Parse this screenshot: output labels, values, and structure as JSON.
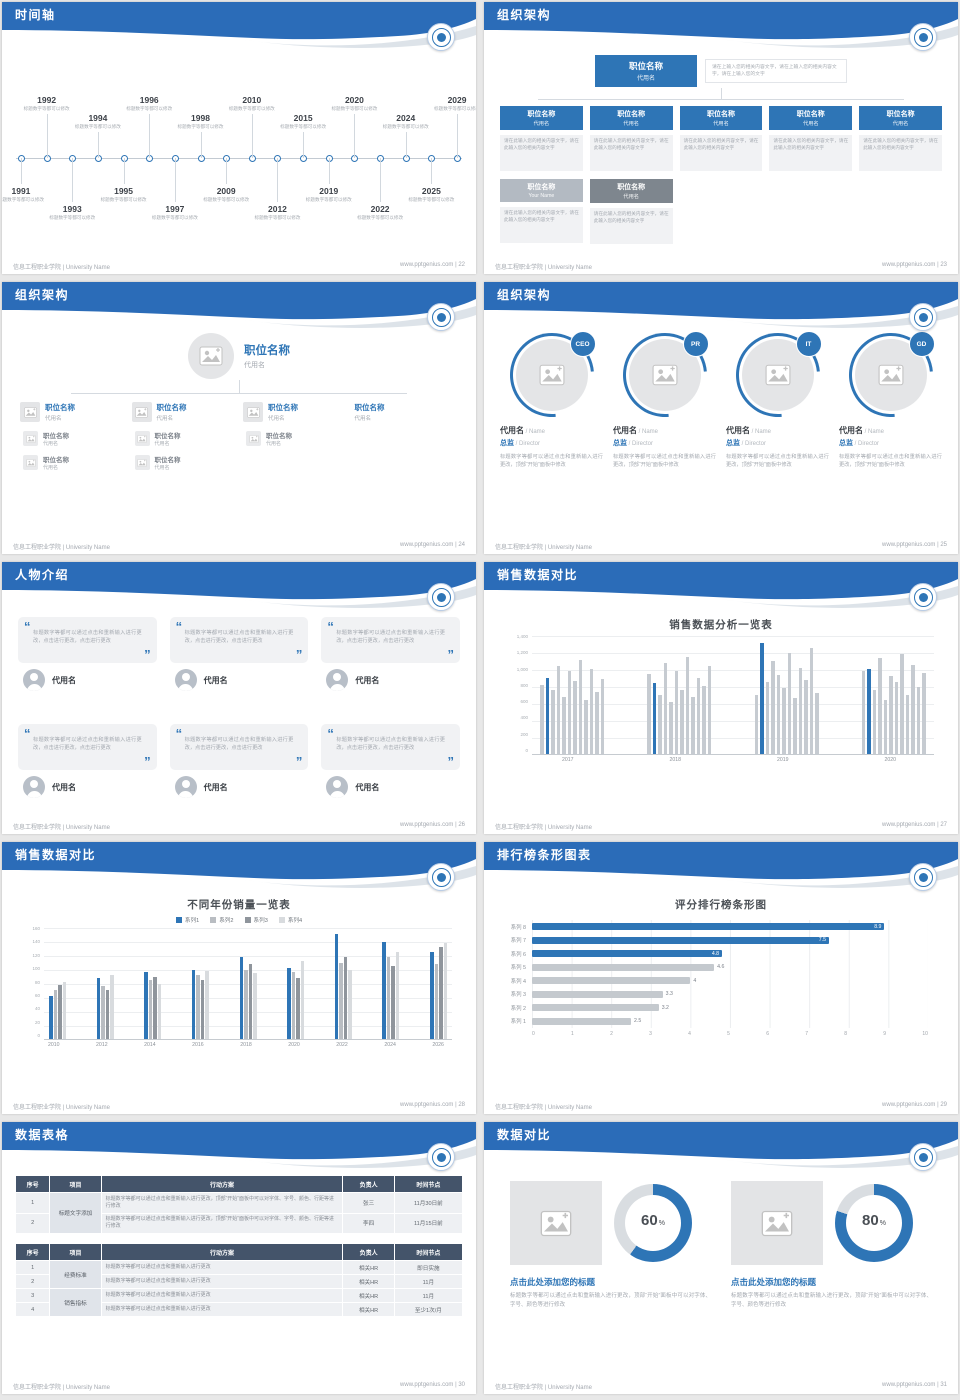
{
  "accent": "#2e75b6",
  "header_blue": "#2b6cb8",
  "footer": {
    "school": "信息工程职业学院 | University Name",
    "site": "www.pptgenius.com",
    "sep": " | "
  },
  "slides": [
    {
      "title": "时间轴",
      "page": "22"
    },
    {
      "title": "组织架构",
      "page": "23"
    },
    {
      "title": "组织架构",
      "page": "24"
    },
    {
      "title": "组织架构",
      "page": "25"
    },
    {
      "title": "人物介绍",
      "page": "26"
    },
    {
      "title": "销售数据对比",
      "page": "27"
    },
    {
      "title": "销售数据对比",
      "page": "28"
    },
    {
      "title": "排行榜条形图表",
      "page": "29"
    },
    {
      "title": "数据表格",
      "page": "30"
    },
    {
      "title": "数据对比",
      "page": "31"
    }
  ],
  "timeline": {
    "caption": "标题数字等都可以修改",
    "items": [
      {
        "year": "1991",
        "side": "below"
      },
      {
        "year": "1992",
        "side": "above"
      },
      {
        "year": "1993",
        "side": "below"
      },
      {
        "year": "1994",
        "side": "above"
      },
      {
        "year": "1995",
        "side": "below"
      },
      {
        "year": "1996",
        "side": "above"
      },
      {
        "year": "1997",
        "side": "below"
      },
      {
        "year": "1998",
        "side": "above"
      },
      {
        "year": "2009",
        "side": "below"
      },
      {
        "year": "2010",
        "side": "above"
      },
      {
        "year": "2012",
        "side": "below"
      },
      {
        "year": "2015",
        "side": "above"
      },
      {
        "year": "2019",
        "side": "below"
      },
      {
        "year": "2020",
        "side": "above"
      },
      {
        "year": "2022",
        "side": "below"
      },
      {
        "year": "2024",
        "side": "above"
      },
      {
        "year": "2025",
        "side": "below"
      },
      {
        "year": "2029",
        "side": "above"
      }
    ]
  },
  "org_boxes": {
    "root": {
      "title": "职位名称",
      "name": "代用名"
    },
    "root_note": "请在上输入您的相关内容文字，请在上输入您的相关内容文字，请在上输入您的文字",
    "note": "请在此输入您的相关内容文字，请在此输入您的相关内容文字",
    "nodes": [
      {
        "title": "职位名称",
        "name": "代用名"
      },
      {
        "title": "职位名称",
        "name": "代用名"
      },
      {
        "title": "职位名称",
        "name": "代用名"
      },
      {
        "title": "职位名称",
        "name": "代用名"
      },
      {
        "title": "职位名称",
        "name": "代用名"
      }
    ],
    "extra": [
      {
        "title": "职位名称",
        "name": "Your Name",
        "tone": "light"
      },
      {
        "title": "职位名称",
        "name": "代用名",
        "tone": "dark"
      }
    ]
  },
  "org_tree": {
    "root": {
      "title": "职位名称",
      "name": "代用名"
    },
    "children": [
      {
        "title": "职位名称",
        "name": "代用名",
        "icon": true,
        "subs": [
          {
            "title": "职位名称",
            "name": "代用名"
          },
          {
            "title": "职位名称",
            "name": "代用名"
          }
        ]
      },
      {
        "title": "职位名称",
        "name": "代用名",
        "icon": true,
        "subs": [
          {
            "title": "职位名称",
            "name": "代用名"
          },
          {
            "title": "职位名称",
            "name": "代用名"
          }
        ]
      },
      {
        "title": "职位名称",
        "name": "代用名",
        "icon": true,
        "subs": [
          {
            "title": "职位名称",
            "name": "代用名"
          }
        ]
      },
      {
        "title": "职位名称",
        "name": "代用名",
        "icon": false,
        "subs": []
      }
    ]
  },
  "profiles": {
    "badges": [
      "CEO",
      "PR",
      "IT",
      "GD"
    ],
    "name": "代用名",
    "name_suffix": " / Name",
    "role": "总监",
    "role_suffix": " / Director",
    "desc": "标题数字等都可以通过点击和重新输入进行更改，顶部“开始”面板中修改"
  },
  "persons": {
    "count": 6,
    "name": "代用名",
    "quote": "标题数字等都可以通过点击和重新输入进行更改，点击进行更改，点击进行更改"
  },
  "chart_data": [
    {
      "type": "bar",
      "title": "销售数据分析一览表",
      "group_labels": [
        "2017",
        "2018",
        "2019",
        "2020"
      ],
      "group_size": 12,
      "ylim": [
        0,
        1400
      ],
      "yticks": [
        "1,400",
        "1,200",
        "1,000",
        "800",
        "600",
        "400",
        "200",
        "0"
      ],
      "values": [
        820,
        900,
        760,
        1050,
        680,
        980,
        870,
        1120,
        640,
        1010,
        730,
        890,
        950,
        840,
        700,
        1080,
        620,
        990,
        760,
        1150,
        680,
        900,
        810,
        1040,
        700,
        1320,
        860,
        1100,
        940,
        780,
        1200,
        660,
        1020,
        880,
        1260,
        720,
        980,
        1010,
        760,
        1140,
        640,
        920,
        850,
        1190,
        700,
        1060,
        790,
        960
      ],
      "highlight_indices": [
        1,
        13,
        25,
        37
      ],
      "bar_color": "#c6cbd1",
      "highlight_color": "#2e75b6",
      "grid": true,
      "legend": "none"
    },
    {
      "type": "bar",
      "title": "不同年份销量一览表",
      "categories": [
        "2010",
        "2012",
        "2014",
        "2016",
        "2018",
        "2020",
        "2022",
        "2024",
        "2026"
      ],
      "ylim": [
        0,
        160
      ],
      "yticks": [
        "160",
        "140",
        "120",
        "100",
        "80",
        "60",
        "40",
        "20",
        "0"
      ],
      "series": [
        {
          "name": "系列1",
          "color": "#2e75b6",
          "values": [
            62,
            88,
            96,
            100,
            118,
            102,
            152,
            140,
            125
          ]
        },
        {
          "name": "系列2",
          "color": "#b9bdc2",
          "values": [
            70,
            76,
            85,
            92,
            100,
            96,
            110,
            118,
            108
          ]
        },
        {
          "name": "系列3",
          "color": "#8f959c",
          "values": [
            78,
            70,
            90,
            85,
            108,
            88,
            118,
            105,
            132
          ]
        },
        {
          "name": "系列4",
          "color": "#d8dbde",
          "values": [
            82,
            92,
            80,
            98,
            95,
            112,
            100,
            125,
            138
          ]
        }
      ],
      "grid": true,
      "legend": "top"
    },
    {
      "type": "bar",
      "orientation": "horizontal",
      "title": "评分排行榜条形图",
      "categories": [
        "系列 8",
        "系列 7",
        "系列 6",
        "系列 5",
        "系列 4",
        "系列 3",
        "系列 2",
        "系列 1"
      ],
      "values": [
        8.9,
        7.5,
        4.8,
        4.6,
        4,
        3.3,
        3.2,
        2.5
      ],
      "highlight_count": 3,
      "xlim": [
        0,
        10
      ],
      "xticks": [
        "0",
        "1",
        "2",
        "3",
        "4",
        "5",
        "6",
        "7",
        "8",
        "9",
        "10"
      ],
      "bar_color": "#c4c9ce",
      "highlight_color": "#2e75b6",
      "grid": true,
      "legend": "none"
    },
    {
      "type": "pie",
      "subtype": "donut",
      "ring_color": "#d9dde1",
      "fill_color": "#2e75b6",
      "items": [
        {
          "percent": 60,
          "label": "60",
          "pct_sign": "%",
          "title": "点击此处添加您的标题",
          "desc": "标题数字等都可以通过点击和重新输入进行更改，顶部“开始”面板中可以对字体、字号、颜色等进行修改"
        },
        {
          "percent": 80,
          "label": "80",
          "pct_sign": "%",
          "title": "点击此处添加您的标题",
          "desc": "标题数字等都可以通过点击和重新输入进行更改，顶部“开始”面板中可以对字体、字号、颜色等进行修改"
        }
      ]
    }
  ],
  "tables": {
    "headers": [
      "序号",
      "项目",
      "行动方案",
      "负责人",
      "时间节点"
    ],
    "table1": {
      "project": "标题文字添加",
      "rows": [
        {
          "no": "1",
          "plan": "标题数字等都可以通过点击和重新输入进行更改，顶部“开始”面板中可以对字体、字号、颜色、行距等进行修改",
          "owner": "张三",
          "time": "11月30日前"
        },
        {
          "no": "2",
          "plan": "标题数字等都可以通过点击和重新输入进行更改，顶部“开始”面板中可以对字体、字号、颜色、行距等进行修改",
          "owner": "李四",
          "time": "11月15日前"
        }
      ]
    },
    "table2": {
      "groups": [
        {
          "project": "经费标准",
          "rows": [
            {
              "no": "1",
              "plan": "标题数字等都可以通过点击和重新输入进行更改",
              "owner": "相关HR",
              "time": "即日实施"
            },
            {
              "no": "2",
              "plan": "标题数字等都可以通过点击和重新输入进行更改",
              "owner": "相关HR",
              "time": "11月"
            }
          ]
        },
        {
          "project": "销售指标",
          "rows": [
            {
              "no": "3",
              "plan": "标题数字等都可以通过点击和重新输入进行更改",
              "owner": "相关HR",
              "time": "11月"
            },
            {
              "no": "4",
              "plan": "标题数字等都可以通过点击和重新输入进行更改",
              "owner": "相关HR",
              "time": "至少1次/月"
            }
          ]
        }
      ]
    }
  }
}
